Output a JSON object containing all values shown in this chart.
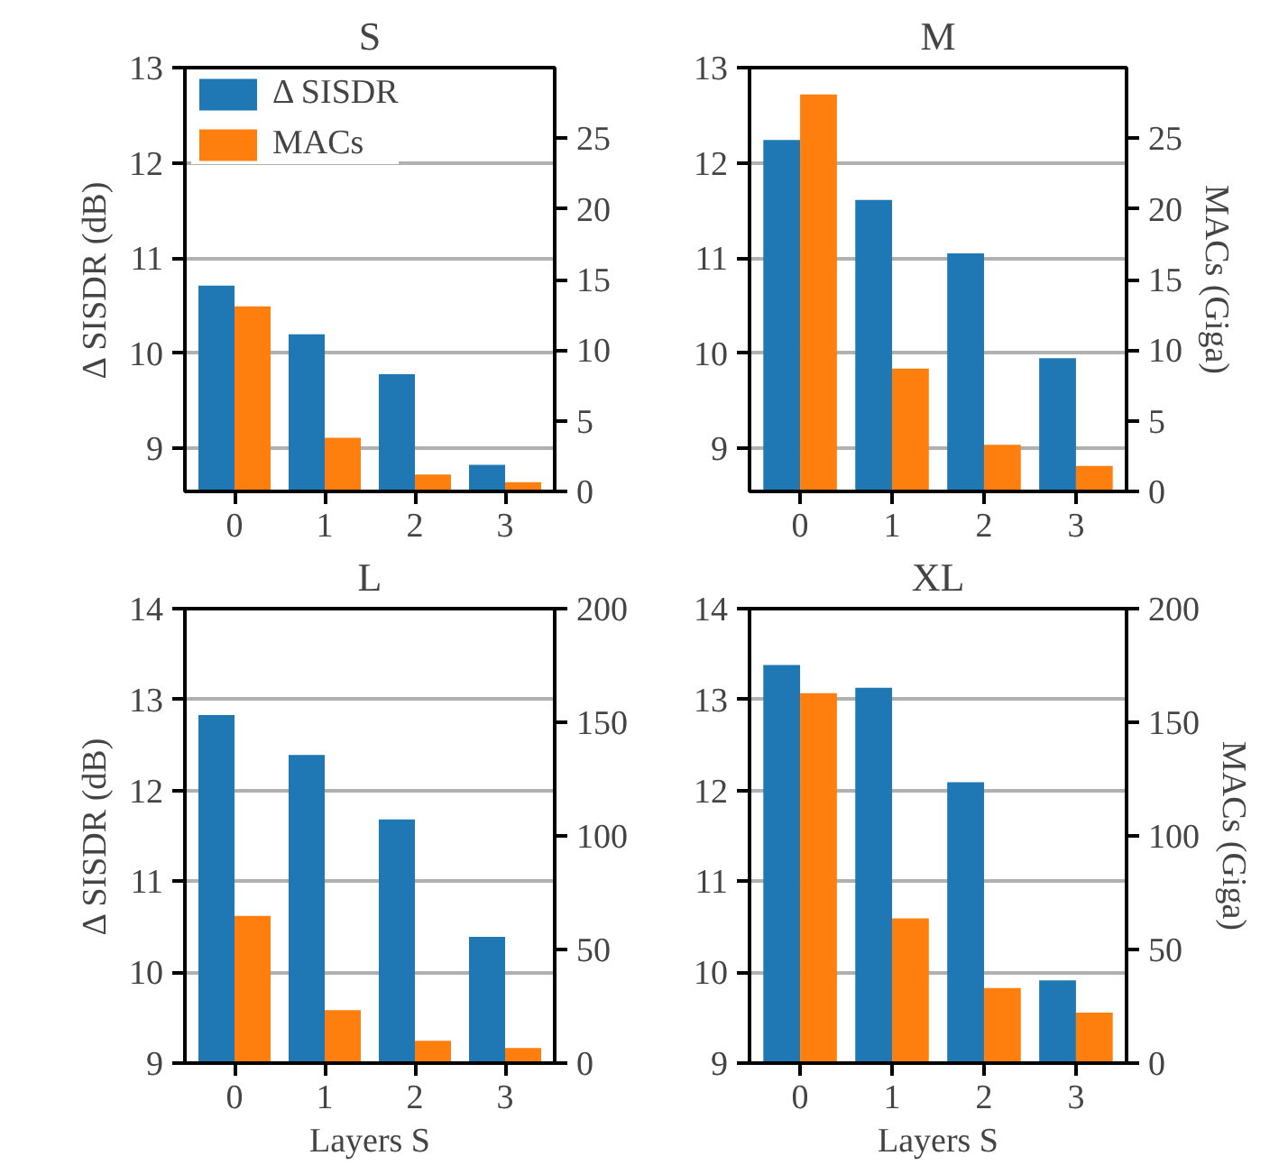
{
  "chart_data": [
    {
      "type": "bar",
      "title": "S",
      "ylabel": "Δ SISDR (dB)",
      "categories": [
        "0",
        "1",
        "2",
        "3"
      ],
      "series": [
        {
          "name": "Δ SISDR",
          "color": "#1f77b4",
          "values": [
            10.71,
            10.2,
            9.78,
            8.83
          ]
        },
        {
          "name": "MACs",
          "color": "#ff7f0e",
          "axis": "y2",
          "values": [
            13.1,
            3.8,
            1.2,
            0.65
          ]
        }
      ],
      "ylim": [
        8.55,
        13
      ],
      "yticks": [
        9,
        10,
        11,
        12,
        13
      ],
      "y2lim": [
        0,
        30
      ],
      "y2ticks": [
        0,
        5,
        10,
        15,
        20,
        25
      ],
      "grid": "y",
      "legend": "top left"
    },
    {
      "type": "bar",
      "title": "M",
      "y2label": "MACs (Giga)",
      "categories": [
        "0",
        "1",
        "2",
        "3"
      ],
      "series": [
        {
          "color": "#1f77b4",
          "values": [
            12.24,
            11.61,
            11.05,
            9.95
          ]
        },
        {
          "color": "#ff7f0e",
          "axis": "y2",
          "values": [
            28.1,
            8.7,
            3.3,
            1.8
          ]
        }
      ],
      "ylim": [
        8.55,
        13
      ],
      "yticks": [
        9,
        10,
        11,
        12,
        13
      ],
      "y2lim": [
        0,
        30
      ],
      "y2ticks": [
        0,
        5,
        10,
        15,
        20,
        25
      ],
      "grid": "y"
    },
    {
      "type": "bar",
      "title": "L",
      "ylabel": "Δ SISDR (dB)",
      "xlabel": "Layers S",
      "categories": [
        "0",
        "1",
        "2",
        "3"
      ],
      "series": [
        {
          "color": "#1f77b4",
          "values": [
            12.83,
            12.39,
            11.68,
            10.39
          ]
        },
        {
          "color": "#ff7f0e",
          "axis": "y2",
          "values": [
            64.8,
            23.3,
            9.8,
            6.6
          ]
        }
      ],
      "ylim": [
        9,
        14
      ],
      "yticks": [
        9,
        10,
        11,
        12,
        13,
        14
      ],
      "y2lim": [
        0,
        200
      ],
      "y2ticks": [
        0,
        50,
        100,
        150,
        200
      ],
      "grid": "y"
    },
    {
      "type": "bar",
      "title": "XL",
      "y2label": "MACs (Giga)",
      "xlabel": "Layers S",
      "categories": [
        "0",
        "1",
        "2",
        "3"
      ],
      "series": [
        {
          "color": "#1f77b4",
          "values": [
            13.38,
            13.13,
            12.09,
            9.91
          ]
        },
        {
          "color": "#ff7f0e",
          "axis": "y2",
          "values": [
            162.8,
            63.7,
            33,
            22.2
          ]
        }
      ],
      "ylim": [
        9,
        14
      ],
      "yticks": [
        9,
        10,
        11,
        12,
        13,
        14
      ],
      "y2lim": [
        0,
        200
      ],
      "y2ticks": [
        0,
        50,
        100,
        150,
        200
      ],
      "grid": "y"
    }
  ]
}
